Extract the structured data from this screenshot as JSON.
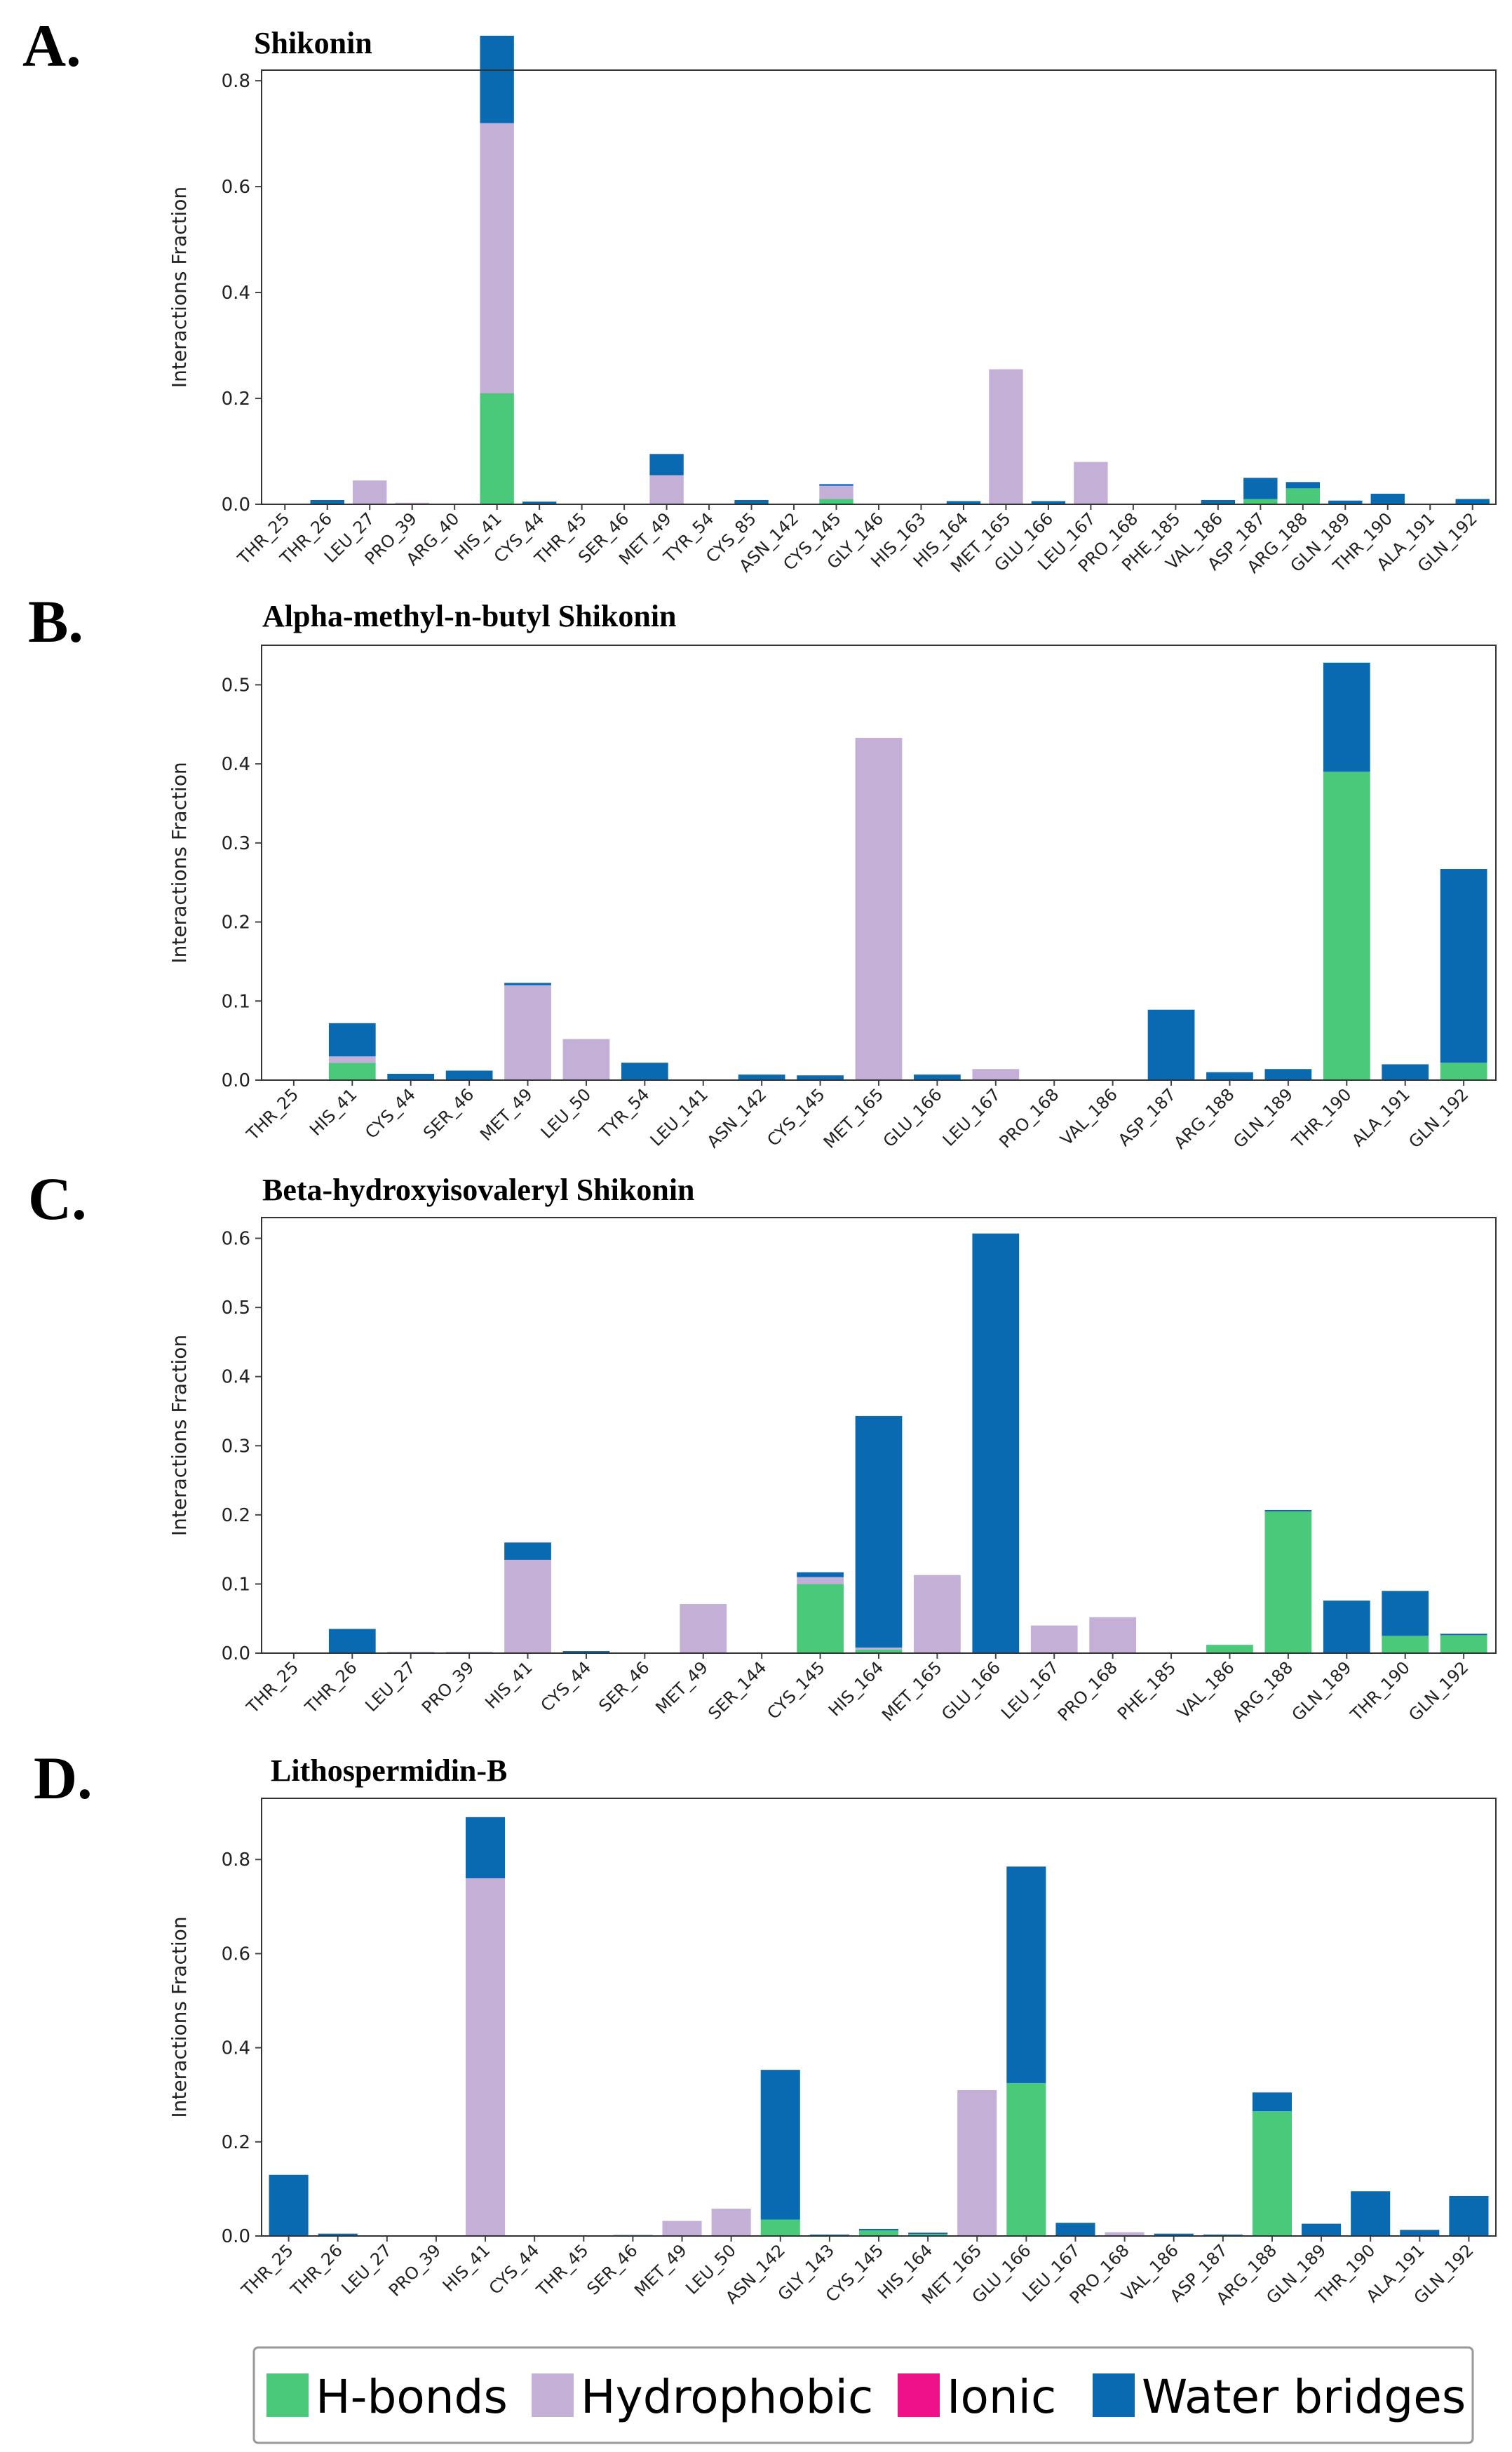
{
  "colors": {
    "H-bonds": "#4bc97a",
    "Hydrophobic": "#c4afd6",
    "Ionic": "#ee1188",
    "Water bridges": "#0a6ab1"
  },
  "legend": {
    "items": [
      "H-bonds",
      "Hydrophobic",
      "Ionic",
      "Water bridges"
    ]
  },
  "chart_data": [
    {
      "panel": "A.",
      "type": "bar",
      "stacked": true,
      "title": "Shikonin",
      "ylabel": "Interactions Fraction",
      "ylim": [
        0,
        0.82
      ],
      "yticks": [
        "0.0",
        "0.2",
        "0.4",
        "0.6",
        "0.8"
      ],
      "categories": [
        "THR_25",
        "THR_26",
        "LEU_27",
        "PRO_39",
        "ARG_40",
        "HIS_41",
        "CYS_44",
        "THR_45",
        "SER_46",
        "MET_49",
        "TYR_54",
        "CYS_85",
        "ASN_142",
        "CYS_145",
        "GLY_146",
        "HIS_163",
        "HIS_164",
        "MET_165",
        "GLU_166",
        "LEU_167",
        "PRO_168",
        "PHE_185",
        "VAL_186",
        "ASP_187",
        "ARG_188",
        "GLN_189",
        "THR_190",
        "ALA_191",
        "GLN_192"
      ],
      "series": [
        {
          "name": "H-bonds",
          "values": [
            0,
            0,
            0,
            0,
            0,
            0.21,
            0,
            0,
            0,
            0,
            0,
            0,
            0,
            0.01,
            0,
            0,
            0,
            0,
            0,
            0,
            0,
            0,
            0,
            0.01,
            0.03,
            0,
            0,
            0,
            0
          ]
        },
        {
          "name": "Hydrophobic",
          "values": [
            0,
            0,
            0.045,
            0.003,
            0,
            0.51,
            0,
            0,
            0,
            0.055,
            0,
            0,
            0,
            0.025,
            0,
            0,
            0,
            0.255,
            0,
            0.08,
            0,
            0,
            0,
            0,
            0,
            0,
            0,
            0,
            0
          ]
        },
        {
          "name": "Ionic",
          "values": [
            0,
            0,
            0,
            0,
            0,
            0,
            0,
            0,
            0,
            0,
            0,
            0,
            0,
            0,
            0,
            0,
            0,
            0,
            0,
            0,
            0,
            0,
            0,
            0,
            0,
            0,
            0,
            0,
            0
          ]
        },
        {
          "name": "Water bridges",
          "values": [
            0,
            0.008,
            0,
            0,
            0,
            0.165,
            0.005,
            0,
            0,
            0.04,
            0,
            0.008,
            0,
            0.003,
            0,
            0,
            0.006,
            0,
            0.006,
            0,
            0,
            0,
            0.008,
            0.04,
            0.012,
            0.007,
            0.02,
            0,
            0.01
          ]
        }
      ]
    },
    {
      "panel": "B.",
      "type": "bar",
      "stacked": true,
      "title": "Alpha-methyl-n-butyl Shikonin",
      "ylabel": "Interactions Fraction",
      "ylim": [
        0,
        0.55
      ],
      "yticks": [
        "0.0",
        "0.1",
        "0.2",
        "0.3",
        "0.4",
        "0.5"
      ],
      "categories": [
        "THR_25",
        "HIS_41",
        "CYS_44",
        "SER_46",
        "MET_49",
        "LEU_50",
        "TYR_54",
        "LEU_141",
        "ASN_142",
        "CYS_145",
        "MET_165",
        "GLU_166",
        "LEU_167",
        "PRO_168",
        "VAL_186",
        "ASP_187",
        "ARG_188",
        "GLN_189",
        "THR_190",
        "ALA_191",
        "GLN_192"
      ],
      "series": [
        {
          "name": "H-bonds",
          "values": [
            0,
            0.022,
            0,
            0,
            0,
            0,
            0,
            0,
            0,
            0,
            0,
            0,
            0,
            0,
            0,
            0,
            0,
            0,
            0.39,
            0,
            0.022
          ]
        },
        {
          "name": "Hydrophobic",
          "values": [
            0,
            0.008,
            0,
            0,
            0.12,
            0.052,
            0,
            0,
            0,
            0,
            0.433,
            0,
            0.014,
            0,
            0,
            0,
            0,
            0,
            0,
            0,
            0
          ]
        },
        {
          "name": "Ionic",
          "values": [
            0,
            0,
            0,
            0,
            0,
            0,
            0,
            0,
            0,
            0,
            0,
            0,
            0,
            0,
            0,
            0,
            0,
            0,
            0,
            0,
            0
          ]
        },
        {
          "name": "Water bridges",
          "values": [
            0,
            0.042,
            0.008,
            0.012,
            0.003,
            0,
            0.022,
            0,
            0.007,
            0.006,
            0,
            0.007,
            0,
            0,
            0,
            0.089,
            0.01,
            0.014,
            0.138,
            0.02,
            0.245
          ]
        }
      ]
    },
    {
      "panel": "C.",
      "type": "bar",
      "stacked": true,
      "title": "Beta-hydroxyisovaleryl Shikonin",
      "ylabel": "Interactions Fraction",
      "ylim": [
        0,
        0.63
      ],
      "yticks": [
        "0.0",
        "0.1",
        "0.2",
        "0.3",
        "0.4",
        "0.5",
        "0.6"
      ],
      "categories": [
        "THR_25",
        "THR_26",
        "LEU_27",
        "PRO_39",
        "HIS_41",
        "CYS_44",
        "SER_46",
        "MET_49",
        "SER_144",
        "CYS_145",
        "HIS_164",
        "MET_165",
        "GLU_166",
        "LEU_167",
        "PRO_168",
        "PHE_185",
        "VAL_186",
        "ARG_188",
        "GLN_189",
        "THR_190",
        "GLN_192"
      ],
      "series": [
        {
          "name": "H-bonds",
          "values": [
            0,
            0,
            0,
            0,
            0,
            0,
            0,
            0,
            0,
            0.1,
            0.005,
            0,
            0,
            0,
            0,
            0,
            0.012,
            0.205,
            0,
            0.025,
            0.026
          ]
        },
        {
          "name": "Hydrophobic",
          "values": [
            0,
            0,
            0.002,
            0.002,
            0.135,
            0,
            0,
            0.071,
            0,
            0.01,
            0.003,
            0.113,
            0,
            0.04,
            0.052,
            0,
            0,
            0,
            0,
            0,
            0
          ]
        },
        {
          "name": "Ionic",
          "values": [
            0,
            0,
            0,
            0,
            0,
            0,
            0,
            0,
            0,
            0,
            0,
            0,
            0,
            0,
            0,
            0,
            0,
            0,
            0,
            0,
            0
          ]
        },
        {
          "name": "Water bridges",
          "values": [
            0,
            0.035,
            0,
            0,
            0.025,
            0.003,
            0,
            0,
            0,
            0.007,
            0.335,
            0,
            0.607,
            0,
            0,
            0,
            0,
            0.002,
            0.076,
            0.065,
            0.002
          ]
        }
      ]
    },
    {
      "panel": "D.",
      "type": "bar",
      "stacked": true,
      "title": "Lithospermidin-B",
      "ylabel": "Interactions Fraction",
      "ylim": [
        0,
        0.93
      ],
      "yticks": [
        "0.0",
        "0.2",
        "0.4",
        "0.6",
        "0.8"
      ],
      "categories": [
        "THR_25",
        "THR_26",
        "LEU_27",
        "PRO_39",
        "HIS_41",
        "CYS_44",
        "THR_45",
        "SER_46",
        "MET_49",
        "LEU_50",
        "ASN_142",
        "GLY_143",
        "CYS_145",
        "HIS_164",
        "MET_165",
        "GLU_166",
        "LEU_167",
        "PRO_168",
        "VAL_186",
        "ASP_187",
        "ARG_188",
        "GLN_189",
        "THR_190",
        "ALA_191",
        "GLN_192"
      ],
      "series": [
        {
          "name": "H-bonds",
          "values": [
            0,
            0,
            0,
            0,
            0,
            0,
            0,
            0,
            0,
            0,
            0.035,
            0,
            0.012,
            0.004,
            0,
            0.325,
            0,
            0,
            0,
            0,
            0.265,
            0,
            0,
            0,
            0
          ]
        },
        {
          "name": "Hydrophobic",
          "values": [
            0,
            0,
            0,
            0,
            0.76,
            0,
            0,
            0,
            0.032,
            0.058,
            0,
            0,
            0,
            0,
            0.31,
            0,
            0,
            0.008,
            0,
            0,
            0,
            0,
            0,
            0,
            0
          ]
        },
        {
          "name": "Ionic",
          "values": [
            0,
            0,
            0,
            0,
            0,
            0,
            0,
            0,
            0,
            0,
            0,
            0,
            0,
            0,
            0,
            0,
            0,
            0,
            0,
            0,
            0,
            0,
            0,
            0,
            0
          ]
        },
        {
          "name": "Water bridges",
          "values": [
            0.13,
            0.005,
            0,
            0,
            0.13,
            0,
            0,
            0.002,
            0,
            0,
            0.318,
            0.003,
            0.003,
            0.003,
            0,
            0.46,
            0.028,
            0,
            0.005,
            0.003,
            0.04,
            0.026,
            0.095,
            0.013,
            0.085
          ]
        }
      ]
    }
  ]
}
